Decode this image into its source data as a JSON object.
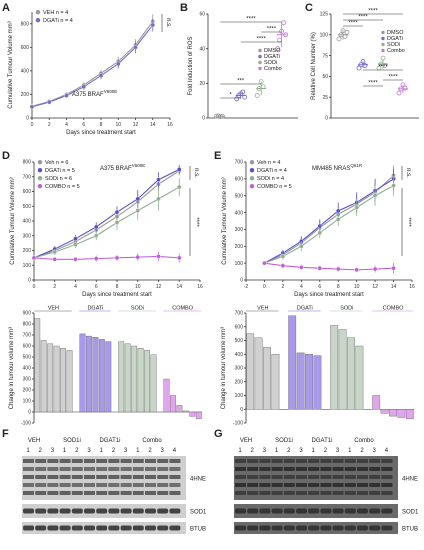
{
  "panel_letters": {
    "a": "A",
    "b": "B",
    "c": "C",
    "d": "D",
    "e": "E",
    "f": "F",
    "g": "G"
  },
  "chart_data": [
    {
      "id": "A",
      "type": "line",
      "inset_label": "A375 BRAF",
      "inset_sup": "V600E",
      "xlabel": "Days since treatment start",
      "ylabel": "Cumulative Tumour Volume mm³",
      "xlim": [
        0,
        16
      ],
      "ylim": [
        0,
        900
      ],
      "xticks": [
        "0",
        "2",
        "4",
        "6",
        "8",
        "10",
        "12",
        "14",
        "16"
      ],
      "yticks": [
        "0",
        "200",
        "400",
        "600",
        "800"
      ],
      "legend_position": "top-left",
      "sig": "n.s.",
      "series": [
        {
          "name": "VEH n = 4",
          "color": "#9a9a9a",
          "x": [
            0,
            2,
            4,
            6,
            8,
            10,
            12,
            14
          ],
          "y": [
            100,
            140,
            200,
            280,
            380,
            480,
            620,
            820
          ],
          "err": [
            10,
            15,
            20,
            25,
            30,
            40,
            50,
            60
          ]
        },
        {
          "name": "DGATi n = 4",
          "color": "#7b68c8",
          "x": [
            0,
            2,
            4,
            6,
            8,
            10,
            12,
            14
          ],
          "y": [
            95,
            135,
            190,
            265,
            360,
            460,
            600,
            790
          ],
          "err": [
            10,
            15,
            20,
            25,
            30,
            40,
            50,
            55
          ]
        }
      ]
    },
    {
      "id": "B",
      "type": "scatter",
      "ylabel": "Fold Induction of ROS",
      "ylim": [
        0,
        60
      ],
      "yticks": [
        "0",
        "20",
        "40",
        "60"
      ],
      "legend": [
        "DMSO",
        "DGATi",
        "SODi",
        "Combo"
      ],
      "colors": [
        "#9a9a9a",
        "#7b68c8",
        "#8fae92",
        "#c878d8"
      ],
      "groups": [
        {
          "name": "DMSO",
          "mean": 1,
          "sd": 0.5,
          "points": [
            1,
            1.2,
            0.8,
            1
          ]
        },
        {
          "name": "DGATi",
          "mean": 13,
          "sd": 2,
          "points": [
            11,
            13,
            14,
            15,
            12
          ]
        },
        {
          "name": "SODi",
          "mean": 17,
          "sd": 4,
          "points": [
            13,
            17,
            21,
            18
          ]
        },
        {
          "name": "Combo",
          "mean": 48,
          "sd": 7,
          "points": [
            40,
            45,
            50,
            55,
            48
          ]
        }
      ],
      "sigs": [
        "*",
        "***",
        "****",
        "****",
        "****"
      ]
    },
    {
      "id": "C",
      "type": "scatter",
      "ylabel": "Relative Cell Number (%)",
      "ylim": [
        0,
        125
      ],
      "yticks": [
        "0",
        "25",
        "50",
        "75",
        "100",
        "125"
      ],
      "legend": [
        "DMSO",
        "DGATi",
        "SODi",
        "Combo"
      ],
      "colors": [
        "#9a9a9a",
        "#7b68c8",
        "#8fae92",
        "#c878d8"
      ],
      "groups": [
        {
          "name": "DMSO",
          "mean": 100,
          "sd": 6,
          "points": [
            95,
            100,
            105,
            98,
            103
          ]
        },
        {
          "name": "DGATi",
          "mean": 64,
          "sd": 4,
          "points": [
            60,
            64,
            68,
            63
          ]
        },
        {
          "name": "SODi",
          "mean": 65,
          "sd": 6,
          "points": [
            60,
            65,
            72,
            63
          ]
        },
        {
          "name": "Combo",
          "mean": 35,
          "sd": 5,
          "points": [
            30,
            35,
            40,
            36
          ]
        }
      ],
      "sigs": [
        "****",
        "****",
        "****",
        "****",
        "****",
        "****"
      ]
    },
    {
      "id": "D",
      "type": "line",
      "inset_label": "A375 BRAF",
      "inset_sup": "V600E",
      "xlabel": "Days since treatment start",
      "ylabel": "Cumulative Tumour Volume mm³",
      "xlim": [
        0,
        16
      ],
      "ylim": [
        0,
        800
      ],
      "xticks": [
        "0",
        "2",
        "4",
        "6",
        "8",
        "10",
        "12",
        "14",
        "16"
      ],
      "yticks": [
        "0",
        "100",
        "200",
        "300",
        "400",
        "500",
        "600",
        "700",
        "800"
      ],
      "legend_position": "top-left",
      "sig1": "n.s.",
      "sig2": "****",
      "series": [
        {
          "name": "Veh n = 6",
          "color": "#9a9a9a",
          "x": [
            0,
            2,
            4,
            6,
            8,
            10,
            12,
            14
          ],
          "y": [
            150,
            200,
            260,
            340,
            430,
            530,
            650,
            740
          ],
          "err": [
            10,
            20,
            25,
            30,
            40,
            50,
            40,
            30
          ]
        },
        {
          "name": "DGATi n = 5",
          "color": "#5a50c8",
          "x": [
            0,
            2,
            4,
            6,
            8,
            10,
            12,
            14
          ],
          "y": [
            150,
            210,
            280,
            360,
            460,
            550,
            680,
            750
          ],
          "err": [
            10,
            20,
            25,
            30,
            40,
            60,
            50,
            30
          ]
        },
        {
          "name": "SODi n = 6",
          "color": "#8fae92",
          "x": [
            0,
            2,
            4,
            6,
            8,
            10,
            12,
            14
          ],
          "y": [
            150,
            190,
            240,
            300,
            390,
            470,
            550,
            630
          ],
          "err": [
            10,
            20,
            25,
            30,
            50,
            60,
            80,
            60
          ]
        },
        {
          "name": "COMBO n = 5",
          "color": "#c060d8",
          "x": [
            0,
            2,
            4,
            6,
            8,
            10,
            12,
            14
          ],
          "y": [
            150,
            140,
            140,
            145,
            150,
            155,
            160,
            150
          ],
          "err": [
            10,
            15,
            15,
            20,
            20,
            25,
            30,
            30
          ]
        }
      ]
    },
    {
      "id": "E",
      "type": "line",
      "inset_label": "MM485 NRAS",
      "inset_sup": "Q61R",
      "xlabel": "Days since treatment start",
      "ylabel": "Cumulative Tumour Volume mm³",
      "xlim": [
        -2,
        16
      ],
      "ylim": [
        0,
        700
      ],
      "xticks": [
        "-2",
        "0",
        "2",
        "4",
        "6",
        "8",
        "10",
        "12",
        "14",
        "16"
      ],
      "yticks": [
        "0",
        "100",
        "200",
        "300",
        "400",
        "500",
        "600",
        "700"
      ],
      "legend_position": "top-left",
      "sig1": "n.s.",
      "sig2": "****",
      "series": [
        {
          "name": "Veh n = 4",
          "color": "#9a9a9a",
          "x": [
            0,
            2,
            4,
            6,
            8,
            10,
            12,
            14
          ],
          "y": [
            100,
            150,
            220,
            310,
            390,
            450,
            520,
            620
          ],
          "err": [
            10,
            20,
            30,
            40,
            40,
            50,
            60,
            60
          ]
        },
        {
          "name": "DGATi n = 4",
          "color": "#5a50c8",
          "x": [
            0,
            2,
            4,
            6,
            8,
            10,
            12,
            14
          ],
          "y": [
            100,
            160,
            230,
            320,
            410,
            460,
            530,
            600
          ],
          "err": [
            10,
            20,
            30,
            40,
            50,
            60,
            70,
            60
          ]
        },
        {
          "name": "SODi n = 4",
          "color": "#8fae92",
          "x": [
            0,
            2,
            4,
            6,
            8,
            10,
            12,
            14
          ],
          "y": [
            100,
            140,
            200,
            280,
            360,
            430,
            500,
            560
          ],
          "err": [
            10,
            20,
            30,
            30,
            40,
            50,
            60,
            60
          ]
        },
        {
          "name": "COMBO n = 5",
          "color": "#c060d8",
          "x": [
            0,
            2,
            4,
            6,
            8,
            10,
            12,
            14
          ],
          "y": [
            100,
            85,
            75,
            70,
            65,
            60,
            65,
            70
          ],
          "err": [
            10,
            15,
            15,
            15,
            15,
            15,
            20,
            30
          ]
        }
      ]
    },
    {
      "id": "D2",
      "type": "bar",
      "ylabel": "Change in tumour volume mm³",
      "ylim": [
        -100,
        900
      ],
      "yticks": [
        "-100",
        "0",
        "100",
        "200",
        "300",
        "400",
        "500",
        "600",
        "700",
        "800",
        "900"
      ],
      "groups": [
        {
          "name": "VEH",
          "color": "#d0d0d0",
          "values": [
            850,
            650,
            620,
            600,
            580,
            560
          ]
        },
        {
          "name": "DGATi",
          "color": "#a89ae8",
          "values": [
            710,
            690,
            680,
            660,
            640
          ]
        },
        {
          "name": "SODi",
          "color": "#c8d6c8",
          "values": [
            640,
            620,
            600,
            580,
            560,
            520
          ]
        },
        {
          "name": "COMBO",
          "color": "#e0a6ec",
          "values": [
            300,
            150,
            60,
            10,
            -40,
            -60
          ]
        }
      ]
    },
    {
      "id": "E2",
      "type": "bar",
      "ylabel": "Change in tumour volume mm³",
      "ylim": [
        -100,
        700
      ],
      "yticks": [
        "-100",
        "0",
        "100",
        "200",
        "300",
        "400",
        "500",
        "600",
        "700"
      ],
      "groups": [
        {
          "name": "VEH",
          "color": "#d0d0d0",
          "values": [
            550,
            520,
            450,
            400
          ]
        },
        {
          "name": "DGATi",
          "color": "#a89ae8",
          "values": [
            680,
            410,
            400,
            390
          ]
        },
        {
          "name": "SODi",
          "color": "#c8d6c8",
          "values": [
            610,
            580,
            520,
            460
          ]
        },
        {
          "name": "COMBO",
          "color": "#e0a6ec",
          "values": [
            100,
            -30,
            -50,
            -60,
            -70
          ]
        }
      ]
    }
  ],
  "blots": {
    "F": {
      "groups": [
        "VEH",
        "SOD1i",
        "DGAT1i",
        "Combo"
      ],
      "lanes": [
        [
          "1",
          "2",
          "3",
          "1"
        ],
        [
          "1",
          "2",
          "3",
          "1"
        ],
        [
          "2",
          "3",
          "1",
          "2",
          "3",
          "4"
        ]
      ],
      "bands": [
        "4HNE",
        "SOD1",
        "BTUB"
      ]
    },
    "G": {
      "groups": [
        "VEH",
        "SOD1i",
        "DGAT1i",
        "Combo"
      ],
      "lanes": [
        [
          "1",
          "2",
          "3",
          "1"
        ],
        [
          "1",
          "2",
          "3",
          "1"
        ],
        [
          "2",
          "3",
          "1",
          "2",
          "3",
          "4"
        ]
      ],
      "bands": [
        "4HNE",
        "SOD1",
        "BTUB"
      ]
    }
  }
}
